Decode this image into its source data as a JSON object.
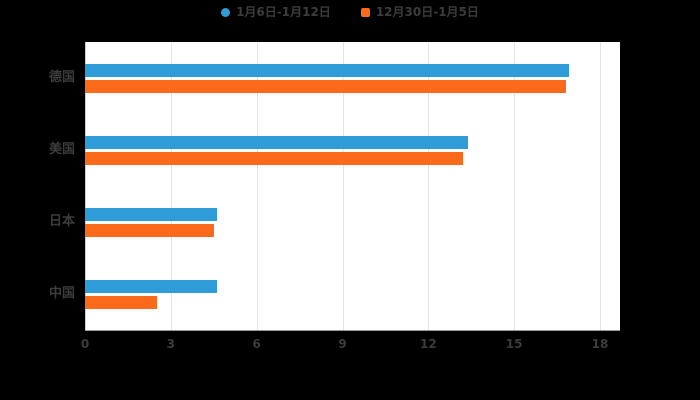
{
  "colors": {
    "background": "#000000",
    "plot_background": "#ffffff",
    "gridline": "#e3e3e3",
    "zero_line": "#cccccc",
    "axis_line": "#999999",
    "text": "#3c3c3c",
    "series1": "#2E9CD6",
    "series2": "#FB6A1A"
  },
  "legend": {
    "items": [
      {
        "label": "1月6日-1月12日",
        "color": "#2E9CD6",
        "marker": "circle"
      },
      {
        "label": "12月30日-1月5日",
        "color": "#FB6A1A",
        "marker": "square"
      }
    ]
  },
  "chart_data": {
    "type": "bar",
    "orientation": "horizontal",
    "title": "",
    "categories": [
      "德国",
      "美国",
      "日本",
      "中国"
    ],
    "series": [
      {
        "name": "1月6日-1月12日",
        "color": "#2E9CD6",
        "values": [
          16.9,
          13.4,
          4.6,
          4.6
        ]
      },
      {
        "name": "12月30日-1月5日",
        "color": "#FB6A1A",
        "values": [
          16.8,
          13.2,
          4.5,
          2.5
        ]
      }
    ],
    "xlim": [
      0,
      18
    ],
    "xticks": [
      0,
      3,
      6,
      9,
      12,
      15,
      18
    ],
    "grid": true,
    "legend_position": "top"
  }
}
